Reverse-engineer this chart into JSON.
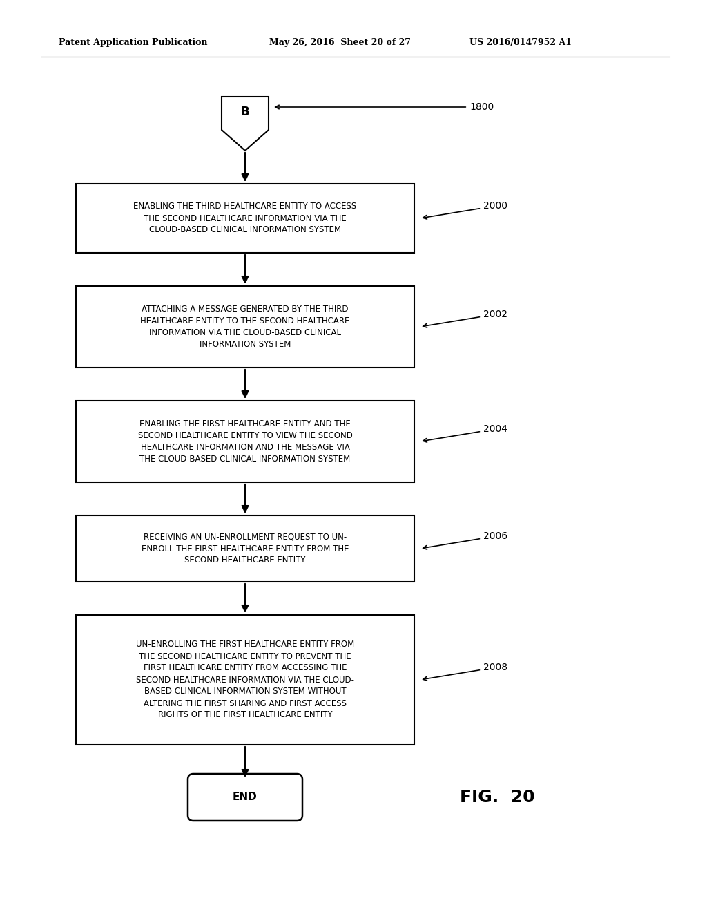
{
  "header_left": "Patent Application Publication",
  "header_middle": "May 26, 2016  Sheet 20 of 27",
  "header_right": "US 2016/0147952 A1",
  "fig_label": "FIG.  20",
  "connector_label": "B",
  "connector_ref": "1800",
  "boxes": [
    {
      "text": "ENABLING THE THIRD HEALTHCARE ENTITY TO ACCESS\nTHE SECOND HEALTHCARE INFORMATION VIA THE\nCLOUD-BASED CLINICAL INFORMATION SYSTEM",
      "ref": "2000"
    },
    {
      "text": "ATTACHING A MESSAGE GENERATED BY THE THIRD\nHEALTHCARE ENTITY TO THE SECOND HEALTHCARE\nINFORMATION VIA THE CLOUD-BASED CLINICAL\nINFORMATION SYSTEM",
      "ref": "2002"
    },
    {
      "text": "ENABLING THE FIRST HEALTHCARE ENTITY AND THE\nSECOND HEALTHCARE ENTITY TO VIEW THE SECOND\nHEALTHCARE INFORMATION AND THE MESSAGE VIA\nTHE CLOUD-BASED CLINICAL INFORMATION SYSTEM",
      "ref": "2004"
    },
    {
      "text": "RECEIVING AN UN-ENROLLMENT REQUEST TO UN-\nENROLL THE FIRST HEALTHCARE ENTITY FROM THE\nSECOND HEALTHCARE ENTITY",
      "ref": "2006"
    },
    {
      "text": "UN-ENROLLING THE FIRST HEALTHCARE ENTITY FROM\nTHE SECOND HEALTHCARE ENTITY TO PREVENT THE\nFIRST HEALTHCARE ENTITY FROM ACCESSING THE\nSECOND HEALTHCARE INFORMATION VIA THE CLOUD-\nBASED CLINICAL INFORMATION SYSTEM WITHOUT\nALTERING THE FIRST SHARING AND FIRST ACCESS\nRIGHTS OF THE FIRST HEALTHCARE ENTITY",
      "ref": "2008"
    }
  ],
  "end_label": "END",
  "bg_color": "#ffffff",
  "text_color": "#000000",
  "font_size": 8.5
}
